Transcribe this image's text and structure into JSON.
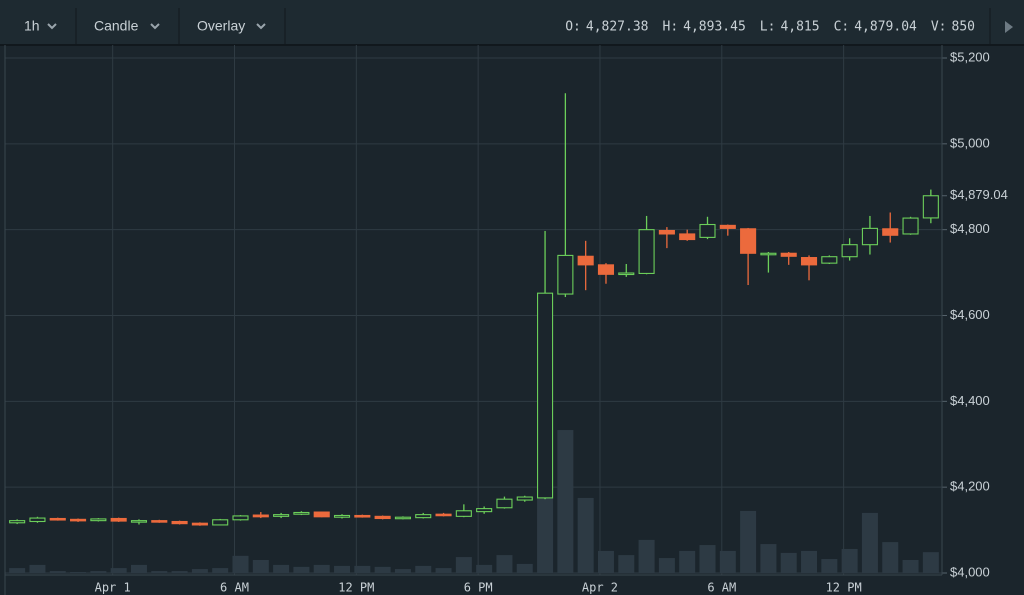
{
  "header": {
    "interval": "1h",
    "chart_style": "Candle",
    "overlay": "Overlay",
    "ohlcv": [
      {
        "key": "O:",
        "value": "4,827.38"
      },
      {
        "key": "H:",
        "value": "4,893.45"
      },
      {
        "key": "L:",
        "value": "4,815"
      },
      {
        "key": "C:",
        "value": "4,879.04"
      },
      {
        "key": "V:",
        "value": "850"
      }
    ]
  },
  "chart_data": {
    "type": "candlestick",
    "categories": [
      null,
      null,
      null,
      null,
      null,
      "Apr 1",
      null,
      null,
      null,
      null,
      null,
      "6 AM",
      null,
      null,
      null,
      null,
      null,
      "12 PM",
      null,
      null,
      null,
      null,
      null,
      "6 PM",
      null,
      null,
      null,
      null,
      null,
      "Apr 2",
      null,
      null,
      null,
      null,
      null,
      "6 AM",
      null,
      null,
      null,
      null,
      null,
      "12 PM",
      null,
      null,
      null,
      null
    ],
    "open": [
      4117,
      4120,
      4127,
      4125,
      4122,
      4127,
      4119,
      4122,
      4120,
      4116,
      4112,
      4124,
      4135,
      4132,
      4137,
      4142,
      4130,
      4134,
      4132,
      4127,
      4129,
      4137,
      4132,
      4143,
      4152,
      4170,
      4175,
      4650,
      4738,
      4718,
      4697,
      4698,
      4798,
      4790,
      4782,
      4810,
      4802,
      4742,
      4745,
      4735,
      4722,
      4737,
      4765,
      4802,
      4790,
      4827.38
    ],
    "high": [
      4125,
      4131,
      4129,
      4127,
      4128,
      4129,
      4125,
      4124,
      4122,
      4118,
      4126,
      4135,
      4142,
      4140,
      4144,
      4143,
      4137,
      4136,
      4134,
      4132,
      4140,
      4140,
      4160,
      4155,
      4178,
      4180,
      4797,
      5118,
      4774,
      4722,
      4720,
      4832,
      4806,
      4800,
      4830,
      4812,
      4804,
      4748,
      4748,
      4740,
      4740,
      4780,
      4832,
      4840,
      4830,
      4893.45
    ],
    "low": [
      4114,
      4117,
      4122,
      4119,
      4120,
      4119,
      4113,
      4117,
      4113,
      4110,
      4111,
      4122,
      4128,
      4128,
      4135,
      4130,
      4127,
      4129,
      4125,
      4125,
      4127,
      4132,
      4130,
      4138,
      4150,
      4166,
      4172,
      4643,
      4659,
      4674,
      4690,
      4696,
      4757,
      4774,
      4778,
      4786,
      4671,
      4700,
      4718,
      4682,
      4720,
      4728,
      4742,
      4770,
      4788,
      4815
    ],
    "close": [
      4122,
      4128,
      4124,
      4122,
      4126,
      4121,
      4122,
      4119,
      4115,
      4112,
      4124,
      4133,
      4131,
      4136,
      4141,
      4131,
      4134,
      4131,
      4127,
      4130,
      4136,
      4134,
      4145,
      4150,
      4172,
      4177,
      4652,
      4740,
      4718,
      4696,
      4699,
      4800,
      4790,
      4777,
      4812,
      4803,
      4745,
      4745,
      4738,
      4718,
      4737,
      4765,
      4803,
      4787,
      4827,
      4879.04
    ],
    "volume": [
      200,
      330,
      80,
      40,
      80,
      200,
      330,
      80,
      80,
      160,
      200,
      700,
      530,
      330,
      250,
      330,
      290,
      290,
      250,
      160,
      290,
      200,
      650,
      330,
      730,
      370,
      3060,
      5830,
      3060,
      900,
      730,
      1350,
      610,
      900,
      1140,
      900,
      2530,
      1180,
      820,
      900,
      570,
      980,
      2450,
      1260,
      530,
      850
    ],
    "up_color": "#6ccf5a",
    "down_color": "#ec6a3d",
    "volume_color": "#2d3a44",
    "ylim": [
      4000,
      5200
    ],
    "yticks": [
      {
        "value": 4000,
        "label": "$4,000"
      },
      {
        "value": 4200,
        "label": "$4,200"
      },
      {
        "value": 4400,
        "label": "$4,400"
      },
      {
        "value": 4600,
        "label": "$4,600"
      },
      {
        "value": 4800,
        "label": "$4,800"
      },
      {
        "value": 5000,
        "label": "$5,000"
      },
      {
        "value": 5200,
        "label": "$5,200"
      }
    ],
    "y2lim": [
      0,
      21000
    ],
    "last_price": 4879.04,
    "last_price_label": "$4,879.04",
    "grid": true
  }
}
